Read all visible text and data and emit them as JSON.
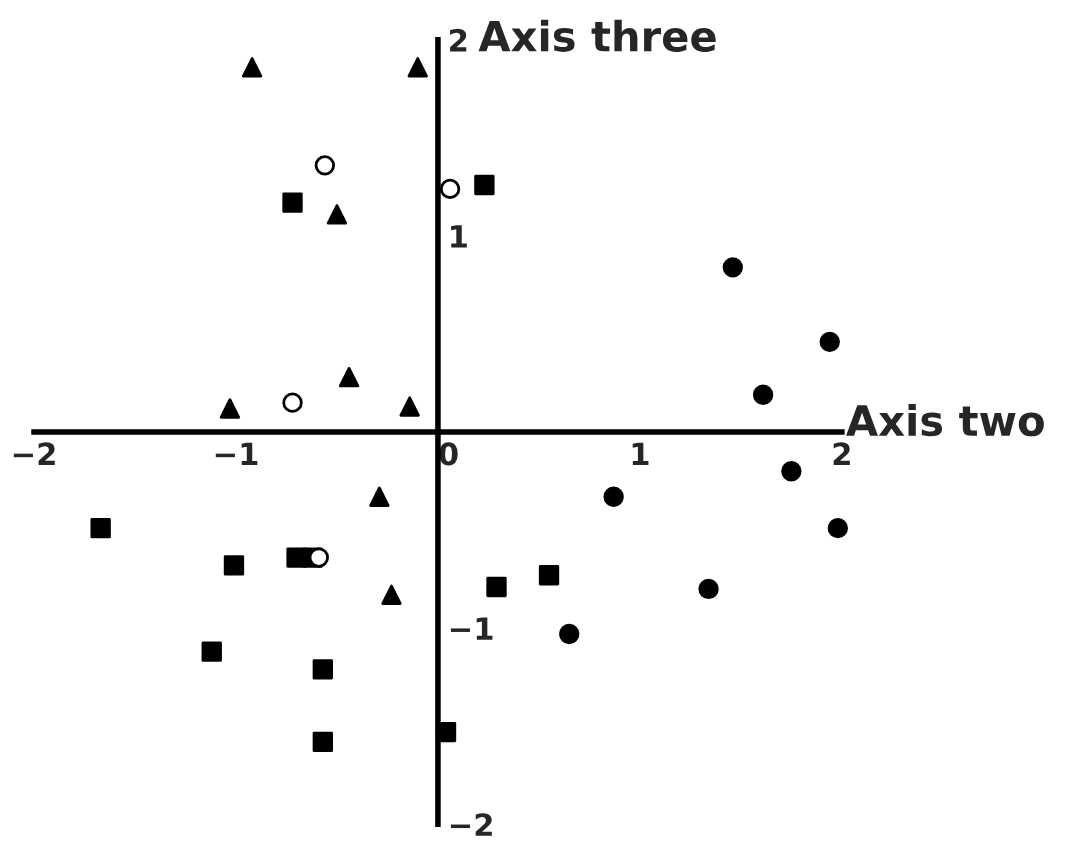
{
  "chart_data": {
    "type": "scatter",
    "xlabel": "Axis two",
    "ylabel": "Axis three",
    "xlim": [
      -2,
      2
    ],
    "ylim": [
      -2,
      2
    ],
    "xticks": [
      -2,
      -1,
      0,
      1,
      2
    ],
    "yticks": [
      -2,
      -1,
      1,
      2
    ],
    "grid": false,
    "legend": false,
    "series": [
      {
        "color": "#000000",
        "marker": "triangle",
        "x": [
          -0.92,
          -0.1,
          -0.5,
          -0.44,
          -1.03,
          -0.14,
          -0.29,
          -0.23
        ],
        "values": [
          1.86,
          1.86,
          1.11,
          0.28,
          0.12,
          0.13,
          -0.33,
          -0.83
        ]
      },
      {
        "color": "#ffffff",
        "marker": "circle",
        "x": [
          -0.56,
          0.06,
          -0.72,
          -0.59
        ],
        "values": [
          1.36,
          1.24,
          0.15,
          -0.64
        ]
      },
      {
        "color": "#000000",
        "marker": "square",
        "x": [
          -0.72,
          0.23,
          -1.67,
          -1.01,
          -0.7,
          -0.62,
          -1.12,
          -0.57,
          -0.57,
          0.04,
          0.29,
          0.55
        ],
        "values": [
          1.17,
          1.26,
          -0.49,
          -0.68,
          -0.64,
          -0.64,
          -1.12,
          -1.21,
          -1.58,
          -1.53,
          -0.79,
          -0.73
        ]
      },
      {
        "color": "#000000",
        "marker": "circle",
        "x": [
          1.46,
          1.94,
          1.61,
          1.75,
          1.98,
          0.87,
          1.34,
          0.65
        ],
        "values": [
          0.84,
          0.46,
          0.19,
          -0.2,
          -0.49,
          -0.33,
          -0.8,
          -1.03
        ]
      }
    ]
  }
}
